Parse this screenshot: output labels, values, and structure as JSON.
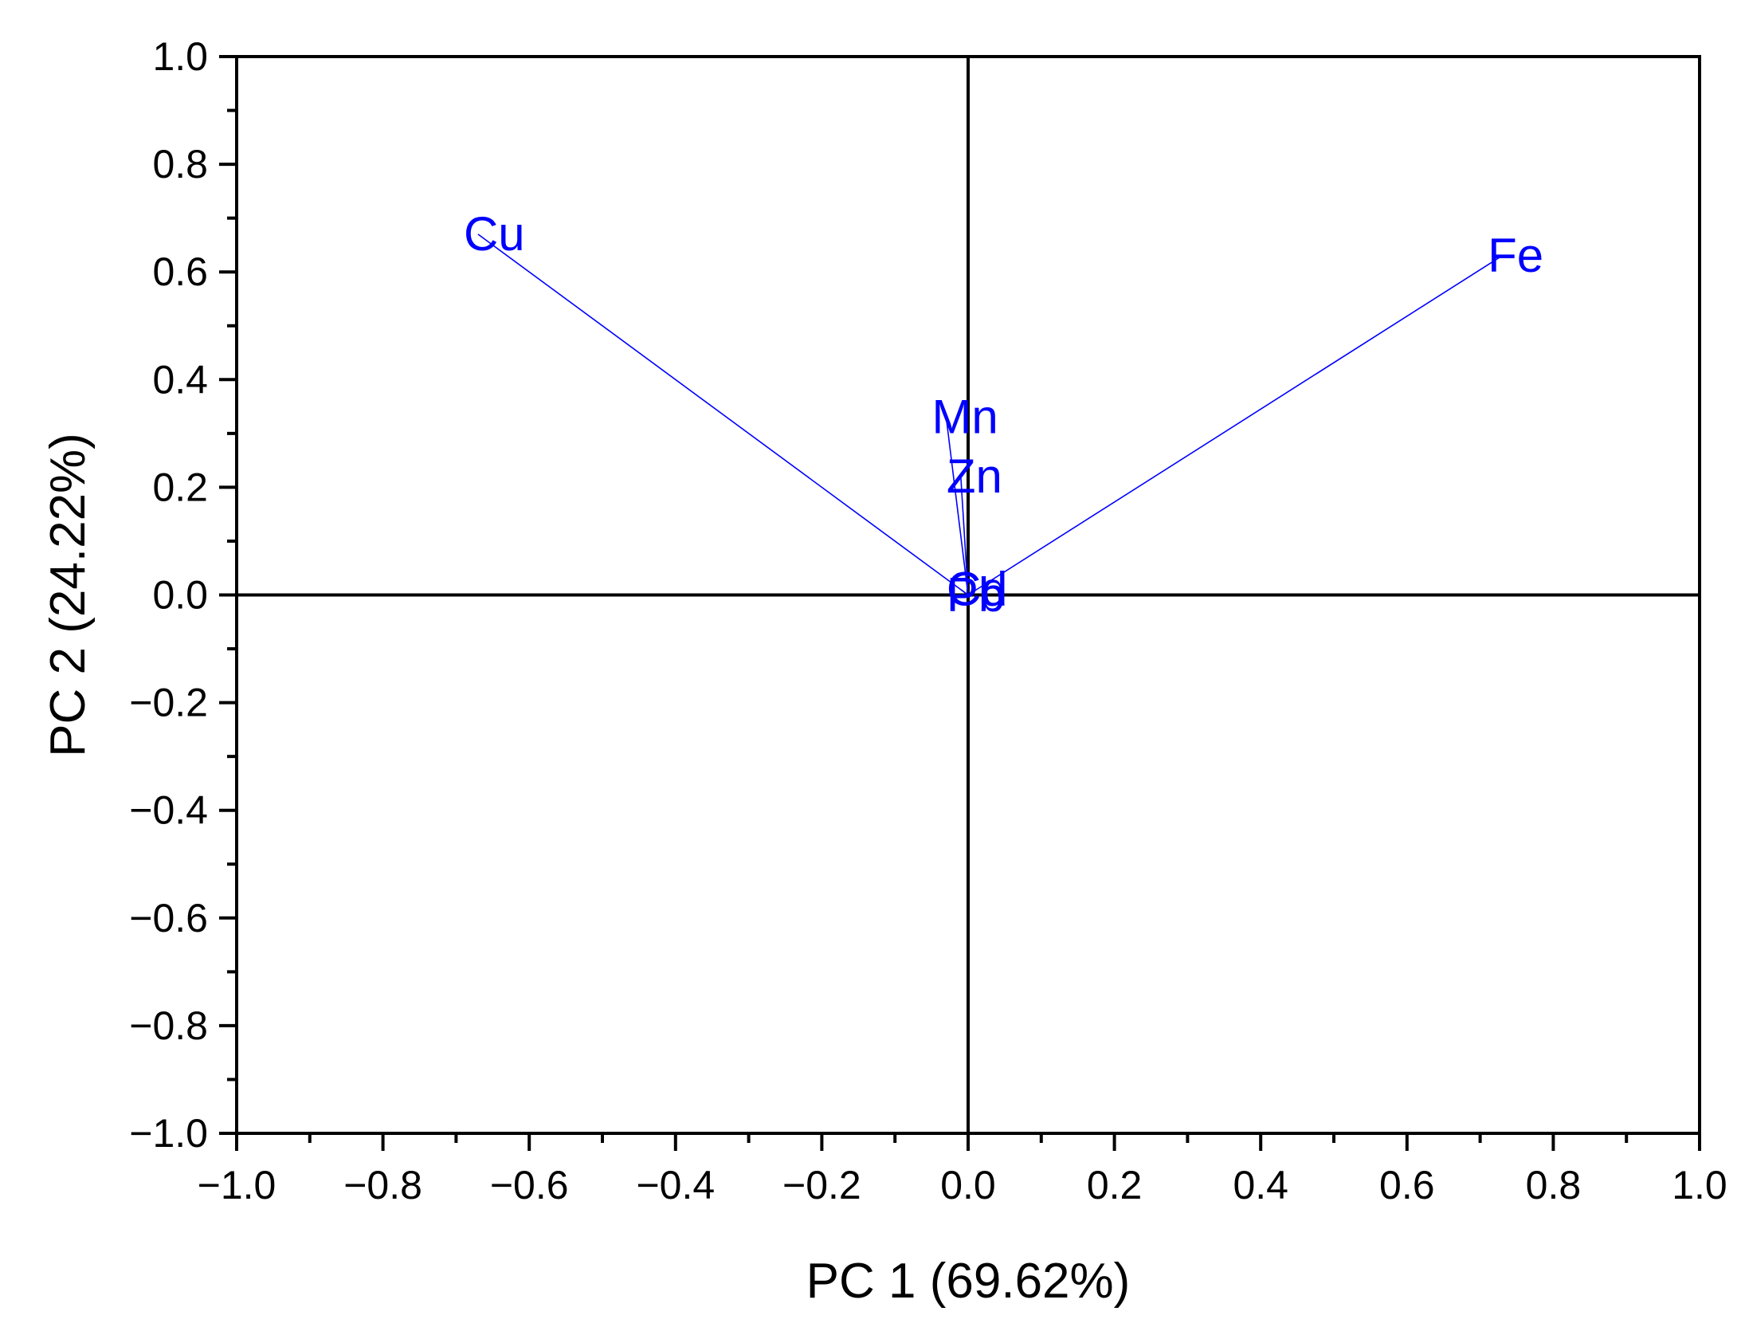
{
  "chart_data": {
    "type": "scatter",
    "subtype": "pca-loading-biplot",
    "title": "",
    "xlabel": "PC 1 (69.62%)",
    "ylabel": "PC 2 (24.22%)",
    "xlim": [
      -1.0,
      1.0
    ],
    "ylim": [
      -1.0,
      1.0
    ],
    "x_ticks": [
      "−1.0",
      "−0.8",
      "−0.6",
      "−0.4",
      "−0.2",
      "0.0",
      "0.2",
      "0.4",
      "0.6",
      "0.8",
      "1.0"
    ],
    "y_ticks": [
      "1.0",
      "0.8",
      "0.6",
      "0.4",
      "0.2",
      "0.0",
      "−0.2",
      "−0.4",
      "−0.6",
      "−0.8",
      "−1.0"
    ],
    "grid": false,
    "origin_lines": true,
    "vector_color": "#0000ff",
    "series": [
      {
        "label": "Cu",
        "x": -0.67,
        "y": 0.67
      },
      {
        "label": "Fe",
        "x": 0.73,
        "y": 0.63
      },
      {
        "label": "Mn",
        "x": -0.03,
        "y": 0.33
      },
      {
        "label": "Zn",
        "x": -0.01,
        "y": 0.22
      },
      {
        "label": "Cd",
        "x": -0.01,
        "y": 0.01
      },
      {
        "label": "Pb",
        "x": -0.01,
        "y": 0.0
      }
    ]
  }
}
